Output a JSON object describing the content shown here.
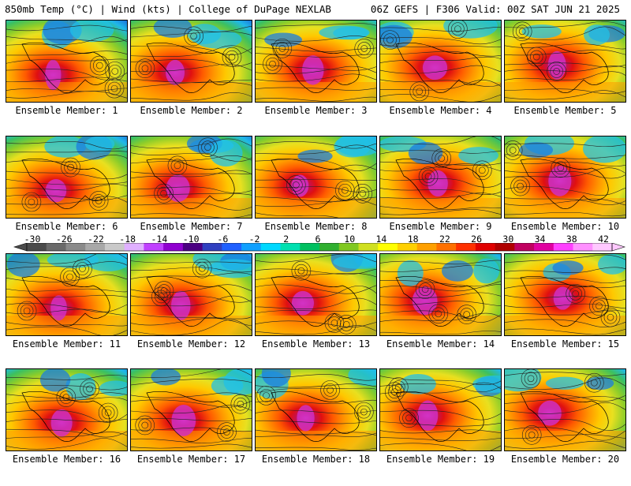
{
  "header": {
    "title": "850mb Temp (°C) | Wind (kts) | College of DuPage NEXLAB",
    "run_info": "06Z GEFS | F306 Valid: 00Z SAT JUN 21 2025"
  },
  "panels": [
    {
      "label": "Ensemble Member: 1"
    },
    {
      "label": "Ensemble Member: 2"
    },
    {
      "label": "Ensemble Member: 3"
    },
    {
      "label": "Ensemble Member: 4"
    },
    {
      "label": "Ensemble Member: 5"
    },
    {
      "label": "Ensemble Member: 6"
    },
    {
      "label": "Ensemble Member: 7"
    },
    {
      "label": "Ensemble Member: 8"
    },
    {
      "label": "Ensemble Member: 9"
    },
    {
      "label": "Ensemble Member: 10"
    },
    {
      "label": "Ensemble Member: 11"
    },
    {
      "label": "Ensemble Member: 12"
    },
    {
      "label": "Ensemble Member: 13"
    },
    {
      "label": "Ensemble Member: 14"
    },
    {
      "label": "Ensemble Member: 15"
    },
    {
      "label": "Ensemble Member: 16"
    },
    {
      "label": "Ensemble Member: 17"
    },
    {
      "label": "Ensemble Member: 18"
    },
    {
      "label": "Ensemble Member: 19"
    },
    {
      "label": "Ensemble Member: 20"
    }
  ],
  "colorbar": {
    "ticks": [
      "-30",
      "-26",
      "-22",
      "-18",
      "-14",
      "-10",
      "-6",
      "-2",
      "2",
      "6",
      "10",
      "14",
      "18",
      "22",
      "26",
      "30",
      "34",
      "38",
      "42"
    ],
    "colors": [
      "#4b4b4b",
      "#6a6a6a",
      "#8a8a8a",
      "#a8a8a8",
      "#c9c9c9",
      "#e0b0ff",
      "#c040ff",
      "#9000d0",
      "#4b0082",
      "#3040c0",
      "#2060ff",
      "#10a0ff",
      "#00d8ff",
      "#00e0b0",
      "#00c060",
      "#30b030",
      "#80c820",
      "#d0e020",
      "#ffff00",
      "#ffd000",
      "#ffa000",
      "#ff7000",
      "#ff3000",
      "#e00000",
      "#b00000",
      "#c00060",
      "#e000a0",
      "#ff40ff",
      "#ff90ff",
      "#ffc8ff"
    ]
  }
}
